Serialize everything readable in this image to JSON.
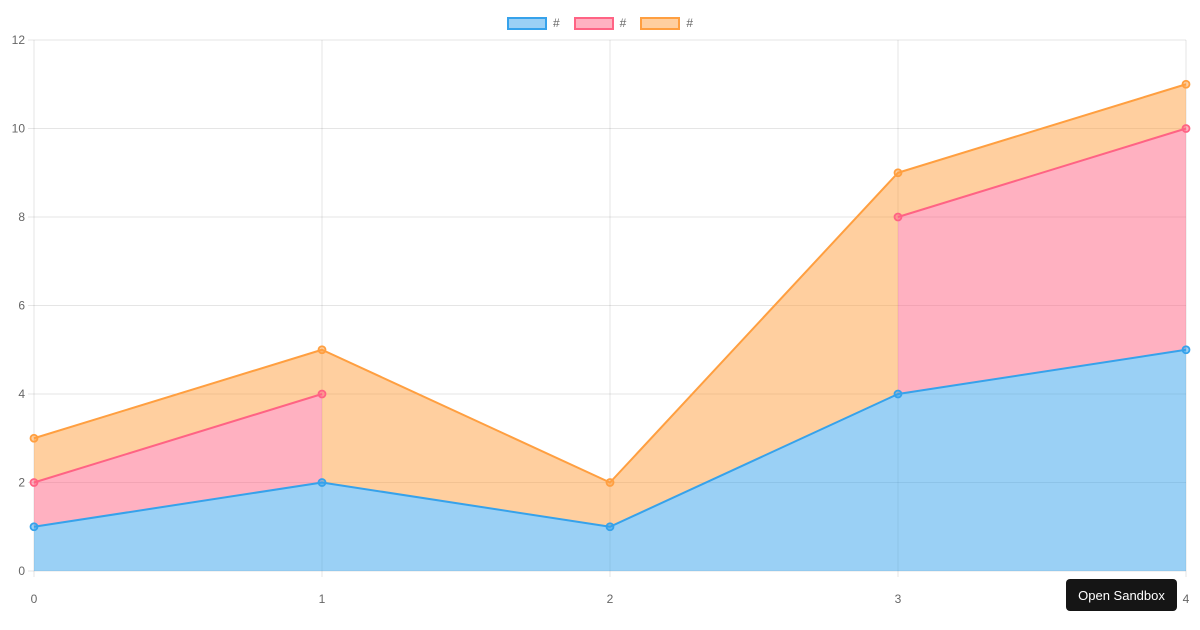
{
  "page": {
    "background": "#ffffff"
  },
  "legend": {
    "position": "top",
    "items": [
      {
        "label": "#",
        "border": "#36A2EB",
        "fill": "#9BD0F5"
      },
      {
        "label": "#",
        "border": "#FF6384",
        "fill": "#FFB1C1"
      },
      {
        "label": "#",
        "border": "#FF9F40",
        "fill": "#FFCF9F"
      }
    ]
  },
  "chart_data": {
    "type": "area",
    "title": "",
    "xlabel": "",
    "ylabel": "",
    "x": [
      0,
      1,
      2,
      3,
      4
    ],
    "series": [
      {
        "name": "#",
        "color": "#36A2EB",
        "fill_color": "#9BD0F5",
        "values": [
          1,
          2,
          1,
          4,
          5
        ],
        "fill_to": "origin"
      },
      {
        "name": "#",
        "color": "#FF6384",
        "fill_color": "#FFB1C1",
        "values": [
          2,
          4,
          null,
          8,
          10
        ],
        "fill_to": "previous-series"
      },
      {
        "name": "#",
        "color": "#FF9F40",
        "fill_color": "#FFCF9F",
        "values": [
          3,
          5,
          2,
          9,
          11
        ],
        "fill_to": "previous-series"
      }
    ],
    "xlim": [
      0,
      4
    ],
    "ylim": [
      0,
      12
    ],
    "x_ticks": [
      0,
      1,
      2,
      3,
      4
    ],
    "y_ticks": [
      0,
      2,
      4,
      6,
      8,
      10,
      12
    ],
    "grid": true,
    "grid_color": "rgba(0,0,0,0.1)",
    "tick_color": "#666666",
    "legend_position": "top",
    "point_radius": 3.5,
    "line_width": 2
  },
  "overlay": {
    "open_sandbox_label": "Open Sandbox",
    "bg": "#151515",
    "text_color": "#ffffff"
  }
}
